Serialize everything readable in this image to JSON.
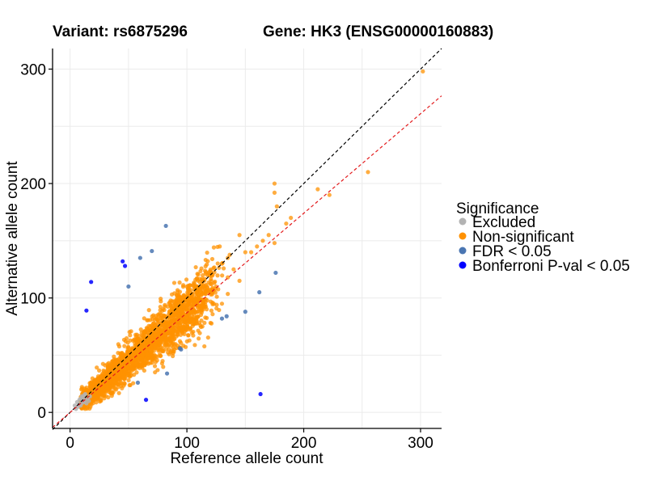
{
  "chart_data": {
    "type": "scatter",
    "title_left": "Variant: rs6875296",
    "title_right": "Gene: HK3 (ENSG00000160883)",
    "xlabel": "Reference allele count",
    "ylabel": "Alternative allele count",
    "xlim": [
      -15,
      318
    ],
    "ylim": [
      -14,
      318
    ],
    "xticks": [
      0,
      100,
      200,
      300
    ],
    "yticks": [
      0,
      100,
      200,
      300
    ],
    "xtick_labels": [
      "0",
      "100",
      "200",
      "300"
    ],
    "ytick_labels": [
      "0",
      "100",
      "200",
      "300"
    ],
    "grid": true,
    "reference_lines": [
      {
        "name": "identity",
        "slope": 1.0,
        "intercept": 0,
        "color": "#000000",
        "style": "dashed"
      },
      {
        "name": "fitted",
        "slope": 0.87,
        "intercept": 0,
        "color": "#e31a1c",
        "style": "dashed"
      }
    ],
    "legend": {
      "title": "Significance",
      "position": "right",
      "entries": [
        {
          "label": "Excluded",
          "color": "#b3b3b3"
        },
        {
          "label": "Non-significant",
          "color": "#ff9100"
        },
        {
          "label": "FDR < 0.05",
          "color": "#4a76b2"
        },
        {
          "label": "Bonferroni P-val < 0.05",
          "color": "#0000ff"
        }
      ]
    },
    "series": [
      {
        "name": "Excluded",
        "color": "#b3b3b3",
        "points": [
          [
            5,
            3
          ],
          [
            7,
            5
          ],
          [
            8,
            7
          ],
          [
            9,
            6
          ],
          [
            10,
            8
          ],
          [
            11,
            10
          ],
          [
            12,
            9
          ],
          [
            13,
            11
          ],
          [
            6,
            9
          ],
          [
            9,
            12
          ],
          [
            14,
            8
          ],
          [
            15,
            12
          ],
          [
            10,
            14
          ],
          [
            12,
            15
          ],
          [
            16,
            10
          ],
          [
            8,
            11
          ],
          [
            4,
            6
          ],
          [
            13,
            16
          ],
          [
            17,
            14
          ],
          [
            11,
            13
          ]
        ]
      },
      {
        "name": "Non-significant",
        "color": "#ff9100",
        "points": [
          [
            302,
            298
          ],
          [
            255,
            210
          ],
          [
            222,
            190
          ],
          [
            212,
            195
          ],
          [
            175,
            200
          ],
          [
            175,
            192
          ],
          [
            189,
            170
          ],
          [
            177,
            180
          ],
          [
            185,
            165
          ],
          [
            175,
            148
          ],
          [
            170,
            155
          ],
          [
            145,
            155
          ],
          [
            160,
            145
          ],
          [
            150,
            140
          ],
          [
            140,
            125
          ],
          [
            130,
            130
          ],
          [
            120,
            120
          ],
          [
            155,
            140
          ],
          [
            135,
            135
          ],
          [
            125,
            110
          ],
          [
            100,
            110
          ],
          [
            110,
            100
          ],
          [
            115,
            108
          ],
          [
            90,
            95
          ],
          [
            105,
            92
          ],
          [
            95,
            100
          ],
          [
            130,
            95
          ],
          [
            145,
            115
          ],
          [
            135,
            118
          ],
          [
            165,
            150
          ]
        ]
      },
      {
        "name": "FDR < 0.05",
        "color": "#4a76b2",
        "points": [
          [
            82,
            163
          ],
          [
            70,
            141
          ],
          [
            60,
            135
          ],
          [
            50,
            110
          ],
          [
            176,
            122
          ],
          [
            162,
            105
          ],
          [
            150,
            88
          ],
          [
            130,
            82
          ],
          [
            134,
            84
          ],
          [
            94,
            56
          ],
          [
            95,
            55
          ],
          [
            83,
            34
          ],
          [
            58,
            26
          ]
        ]
      },
      {
        "name": "Bonferroni P-val < 0.05",
        "color": "#0000ff",
        "points": [
          [
            45,
            132
          ],
          [
            47,
            128
          ],
          [
            18,
            114
          ],
          [
            14,
            89
          ],
          [
            65,
            11
          ],
          [
            163,
            16
          ]
        ]
      }
    ]
  }
}
